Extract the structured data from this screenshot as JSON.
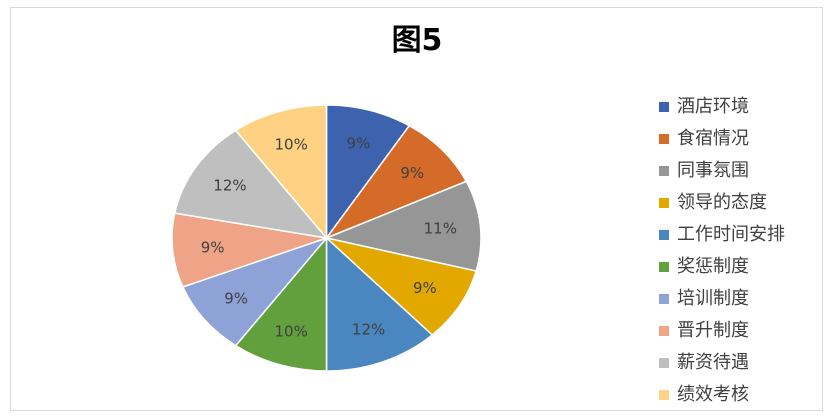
{
  "chart_data": {
    "type": "pie",
    "title": "图5",
    "categories": [
      "酒店环境",
      "食宿情况",
      "同事氛围",
      "领导的态度",
      "工作时间安排",
      "奖惩制度",
      "培训制度",
      "晋升制度",
      "薪资待遇",
      "绩效考核"
    ],
    "values": [
      9,
      9,
      11,
      9,
      12,
      10,
      9,
      9,
      12,
      10
    ],
    "data_labels": [
      "9%",
      "9%",
      "11%",
      "9%",
      "12%",
      "10%",
      "9%",
      "9%",
      "12%",
      "10%"
    ],
    "colors": [
      "#3d63ae",
      "#d56b29",
      "#969696",
      "#e3a800",
      "#4a86c0",
      "#62a03e",
      "#8ea2d7",
      "#efa487",
      "#bfbfbf",
      "#ffd283"
    ],
    "legend_position": "right"
  }
}
